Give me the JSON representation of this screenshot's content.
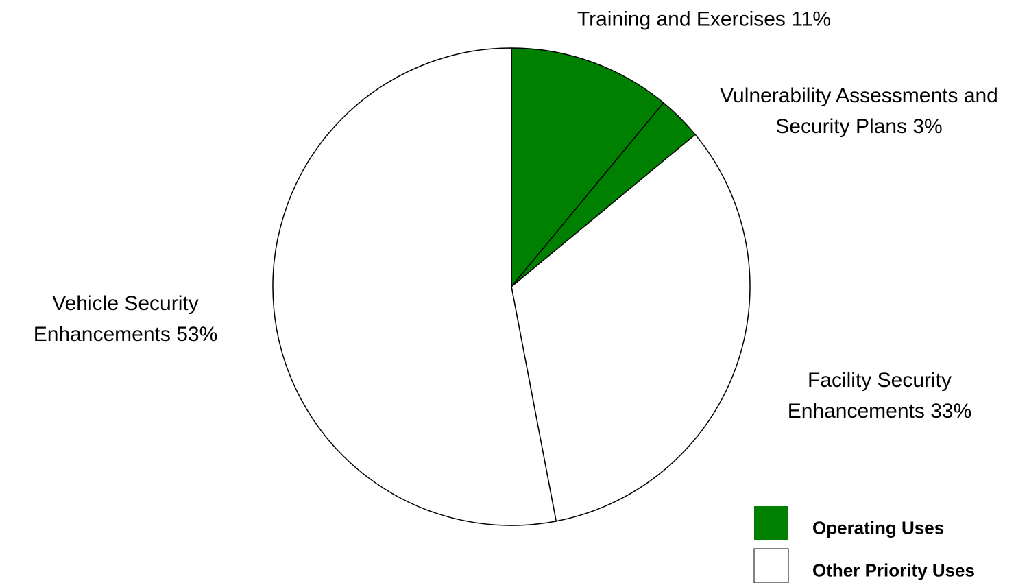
{
  "chart_data": {
    "type": "pie",
    "categories": [
      "Training and Exercises",
      "Vulnerability Assessments and Security Plans",
      "Facility Security Enhancements",
      "Vehicle Security Enhancements"
    ],
    "values": [
      11,
      3,
      33,
      53
    ],
    "value_labels": [
      "11%",
      "3%",
      "33%",
      "53%"
    ],
    "colors": [
      "#008000",
      "#008000",
      "#ffffff",
      "#ffffff"
    ],
    "legend": [
      {
        "name": "Operating Uses",
        "color": "#008000"
      },
      {
        "name": "Other Priority Uses",
        "color": "#ffffff"
      }
    ],
    "start_angle": 0,
    "direction": "clockwise"
  }
}
